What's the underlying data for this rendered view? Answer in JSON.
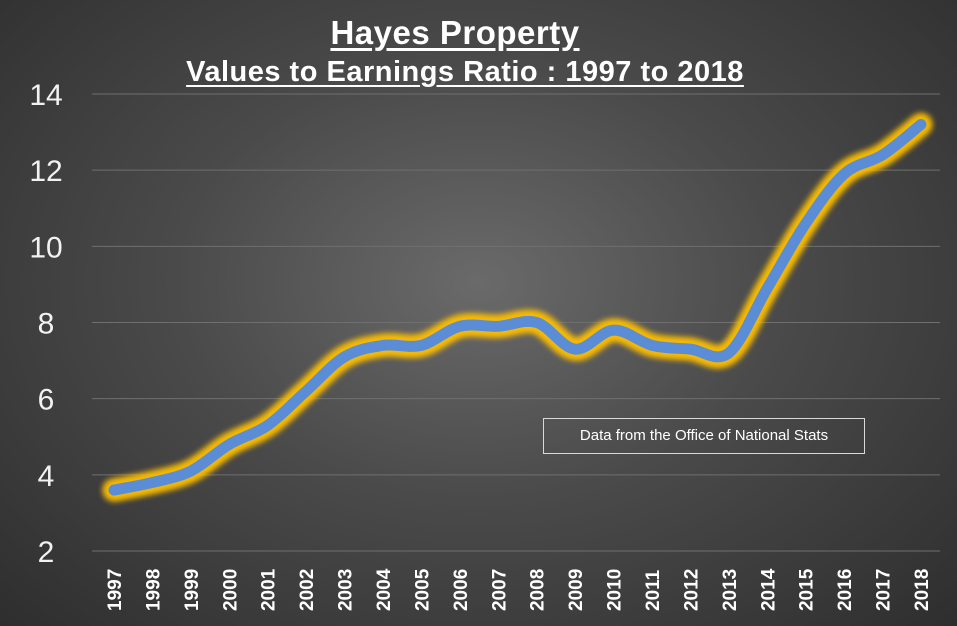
{
  "chart_data": {
    "type": "line",
    "title": "Hayes Property",
    "subtitle": "Values to Earnings Ratio : 1997 to 2018",
    "xlabel": "",
    "ylabel": "",
    "ylim": [
      2,
      14
    ],
    "yticks": [
      2,
      4,
      6,
      8,
      10,
      12,
      14
    ],
    "grid": true,
    "categories": [
      "1997",
      "1998",
      "1999",
      "2000",
      "2001",
      "2002",
      "2003",
      "2004",
      "2005",
      "2006",
      "2007",
      "2008",
      "2009",
      "2010",
      "2011",
      "2012",
      "2013",
      "2014",
      "2015",
      "2016",
      "2017",
      "2018"
    ],
    "series": [
      {
        "name": "Values to Earnings Ratio",
        "values": [
          3.6,
          3.8,
          4.1,
          4.8,
          5.3,
          6.2,
          7.1,
          7.4,
          7.4,
          7.9,
          7.9,
          8.0,
          7.3,
          7.8,
          7.4,
          7.3,
          7.2,
          8.9,
          10.6,
          11.9,
          12.4,
          13.2
        ],
        "color": "#5b8dd6",
        "glow": "#ffc000"
      }
    ],
    "annotation": "Data from the Office of National Stats"
  },
  "colors": {
    "gridline": "#6f6f6f",
    "line": "#5b8dd6",
    "glow": "#ffc000"
  }
}
